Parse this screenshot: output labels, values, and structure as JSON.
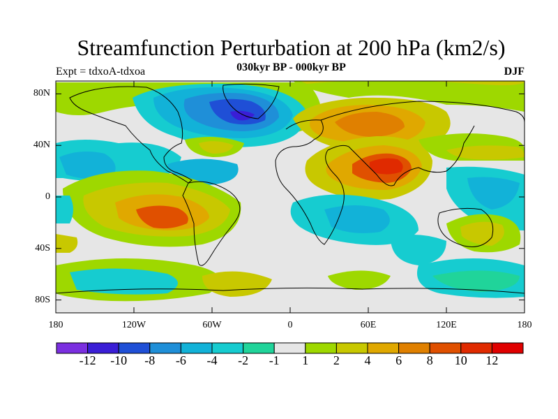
{
  "map": {
    "title": "Streamfunction Perturbation at 200 hPa (km2/s)",
    "subtitle": "030kyr BP - 000kyr BP",
    "left_label": "Expt = tdxoA-tdxoa",
    "right_label": "DJF",
    "lat_ticks": [
      "80N",
      "40N",
      "0",
      "40S",
      "80S"
    ],
    "lon_ticks": [
      "180",
      "120W",
      "60W",
      "0",
      "60E",
      "120E",
      "180"
    ],
    "extent": {
      "lon": [
        -180,
        180
      ],
      "lat": [
        -90,
        90
      ]
    }
  },
  "colorbar": {
    "labels": [
      "-12",
      "-10",
      "-8",
      "-6",
      "-4",
      "-2",
      "-1",
      "1",
      "2",
      "4",
      "6",
      "8",
      "10",
      "12"
    ],
    "colors": [
      "#7b2fe0",
      "#3a1ed6",
      "#1f4fd6",
      "#1f8fd8",
      "#12b2d8",
      "#16ccd0",
      "#20d49a",
      "#e6e6e6",
      "#9ed800",
      "#c8c800",
      "#e0a800",
      "#e08000",
      "#e05000",
      "#e02a00",
      "#e00000"
    ]
  },
  "field_regions": [
    {
      "name": "north-atlantic-low",
      "lon": -40,
      "lat": 58,
      "level": "-8"
    },
    {
      "name": "eurasia-high",
      "lon": 65,
      "lat": 55,
      "level": "6"
    },
    {
      "name": "india-high",
      "lon": 80,
      "lat": 25,
      "level": "10"
    },
    {
      "name": "south-pacific-high",
      "lon": -90,
      "lat": -18,
      "level": "10"
    },
    {
      "name": "southern-indian-low",
      "lon": 60,
      "lat": -20,
      "level": "-4"
    },
    {
      "name": "australia-high",
      "lon": 130,
      "lat": -35,
      "level": "4"
    }
  ]
}
